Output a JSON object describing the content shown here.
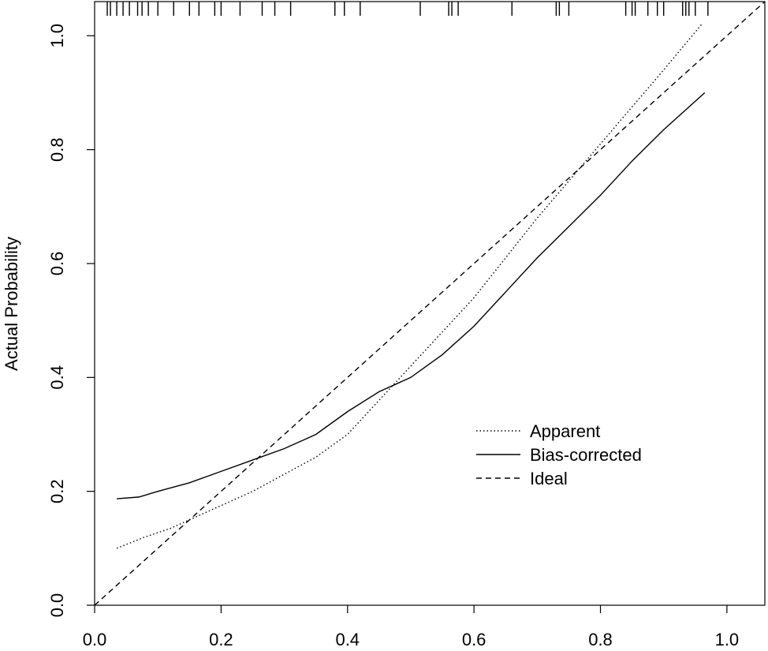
{
  "chart_data": {
    "type": "line",
    "title": "",
    "xlabel": "",
    "ylabel": "Actual Probability",
    "xlim": [
      0.0,
      1.06
    ],
    "ylim": [
      0.0,
      1.06
    ],
    "x_ticks": [
      "0.0",
      "0.2",
      "0.4",
      "0.6",
      "0.8",
      "1.0"
    ],
    "y_ticks": [
      "0.0",
      "0.2",
      "0.4",
      "0.6",
      "0.8",
      "1.0"
    ],
    "grid": false,
    "legend_position": "center-right",
    "series": [
      {
        "name": "Apparent",
        "style": "dotted",
        "x": [
          0.035,
          0.08,
          0.12,
          0.16,
          0.2,
          0.25,
          0.3,
          0.35,
          0.4,
          0.45,
          0.5,
          0.55,
          0.6,
          0.65,
          0.7,
          0.75,
          0.8,
          0.85,
          0.9,
          0.96
        ],
        "y": [
          0.1,
          0.12,
          0.135,
          0.155,
          0.175,
          0.2,
          0.23,
          0.26,
          0.3,
          0.36,
          0.42,
          0.48,
          0.54,
          0.61,
          0.68,
          0.745,
          0.81,
          0.875,
          0.94,
          1.02
        ]
      },
      {
        "name": "Bias-corrected",
        "style": "solid",
        "x": [
          0.035,
          0.07,
          0.1,
          0.15,
          0.2,
          0.25,
          0.3,
          0.35,
          0.4,
          0.45,
          0.5,
          0.55,
          0.6,
          0.65,
          0.7,
          0.75,
          0.8,
          0.85,
          0.9,
          0.965
        ],
        "y": [
          0.187,
          0.19,
          0.2,
          0.215,
          0.235,
          0.255,
          0.275,
          0.3,
          0.34,
          0.375,
          0.4,
          0.44,
          0.49,
          0.55,
          0.61,
          0.665,
          0.72,
          0.78,
          0.835,
          0.9
        ]
      },
      {
        "name": "Ideal",
        "style": "dashed",
        "x": [
          0.0,
          1.06
        ],
        "y": [
          0.0,
          1.06
        ]
      }
    ],
    "rug": [
      0.02,
      0.025,
      0.035,
      0.045,
      0.055,
      0.068,
      0.075,
      0.085,
      0.1,
      0.125,
      0.15,
      0.165,
      0.19,
      0.2,
      0.23,
      0.265,
      0.285,
      0.31,
      0.38,
      0.395,
      0.42,
      0.515,
      0.56,
      0.565,
      0.575,
      0.66,
      0.73,
      0.735,
      0.75,
      0.84,
      0.85,
      0.855,
      0.875,
      0.89,
      0.9,
      0.93,
      0.935,
      0.94,
      0.95,
      0.97
    ]
  }
}
